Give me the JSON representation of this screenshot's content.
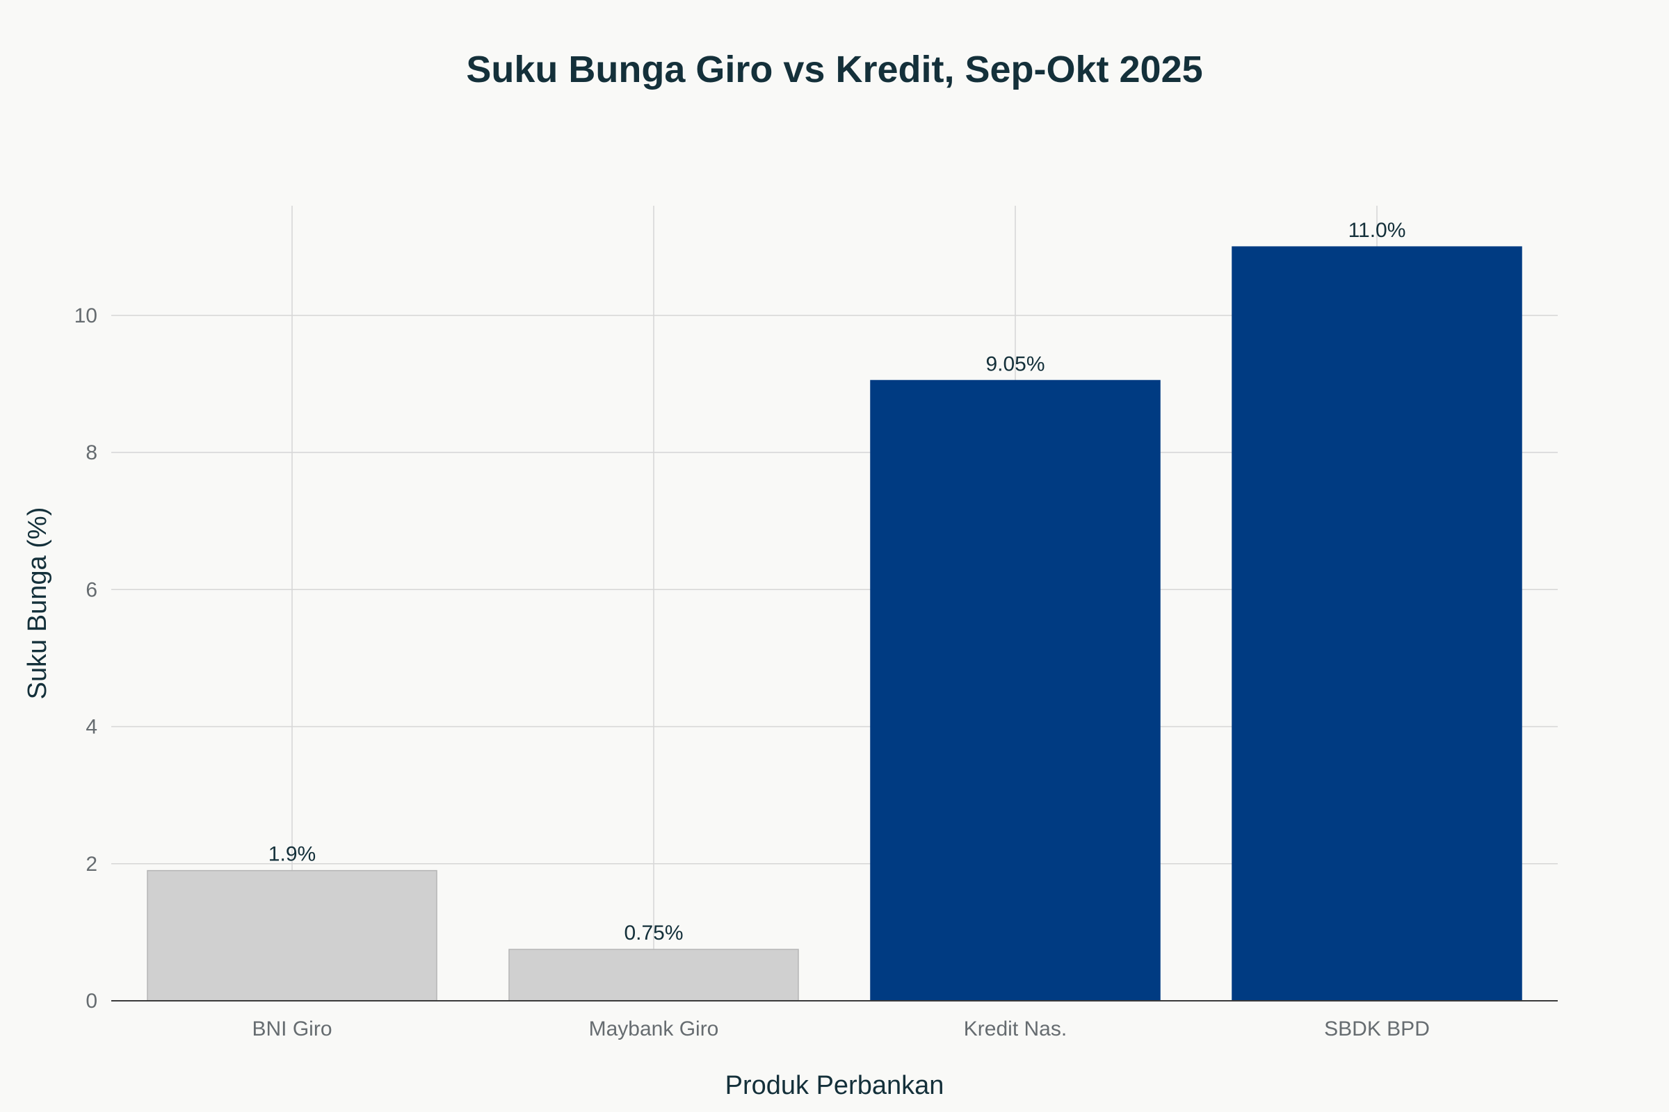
{
  "chart_data": {
    "type": "bar",
    "title": "Suku Bunga Giro vs Kredit, Sep-Okt 2025",
    "xlabel": "Produk Perbankan",
    "ylabel": "Suku Bunga (%)",
    "categories": [
      "BNI Giro",
      "Maybank Giro",
      "Kredit Nas.",
      "SBDK BPD"
    ],
    "values": [
      1.9,
      0.75,
      9.05,
      11.0
    ],
    "data_labels": [
      "1.9%",
      "0.75%",
      "9.05%",
      "11.0%"
    ],
    "bar_colors": [
      "#d0d0d0",
      "#d0d0d0",
      "#003b82",
      "#003b82"
    ],
    "bar_border_colors": [
      "#b5b5b5",
      "#b5b5b5",
      "#003b82",
      "#003b82"
    ],
    "ylim": [
      0,
      11.6
    ],
    "yticks": [
      0,
      2,
      4,
      6,
      8,
      10
    ],
    "grid": true,
    "legend": "none"
  }
}
